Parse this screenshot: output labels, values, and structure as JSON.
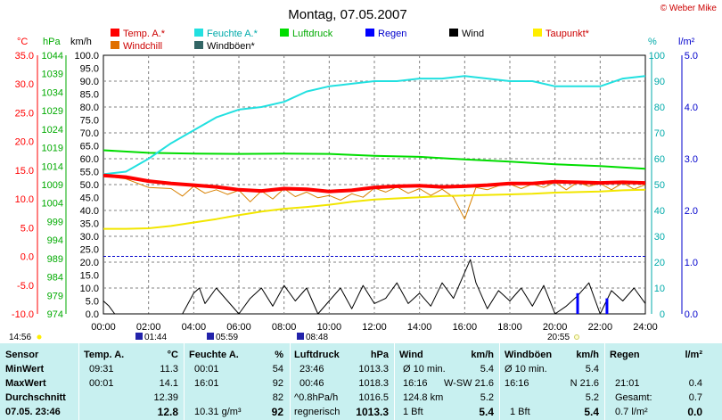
{
  "copyright": "© Weber Mike",
  "chart_data": {
    "type": "line",
    "title": "Montag, 07.05.2007",
    "x_ticks": [
      "00:00",
      "02:00",
      "04:00",
      "06:00",
      "08:00",
      "10:00",
      "12:00",
      "14:00",
      "16:00",
      "18:00",
      "20:00",
      "22:00",
      "24:00"
    ],
    "x_range_hours": [
      0,
      24
    ],
    "legend": [
      {
        "label": "Temp. A.*",
        "color": "#ff0000"
      },
      {
        "label": "Feuchte A.*",
        "color": "#22e0e0"
      },
      {
        "label": "Luftdruck",
        "color": "#00dd00"
      },
      {
        "label": "Regen",
        "color": "#0000ff"
      },
      {
        "label": "Wind",
        "color": "#000000"
      },
      {
        "label": "Taupunkt*",
        "color": "#ffee00"
      },
      {
        "label": "Windchill",
        "color": "#e07000"
      },
      {
        "label": "Windböen*",
        "color": "#336666"
      }
    ],
    "axes": {
      "temp": {
        "unit": "°C",
        "ticks": [
          "35.0",
          "30.0",
          "25.0",
          "20.0",
          "15.0",
          "10.0",
          "5.0",
          "0.0",
          "-5.0",
          "-10.0"
        ],
        "range": [
          -10,
          35
        ],
        "color": "#ff0000"
      },
      "pressure": {
        "unit": "hPa",
        "ticks": [
          "1044",
          "1039",
          "1034",
          "1029",
          "1024",
          "1019",
          "1014",
          "1009",
          "1004",
          "999",
          "994",
          "989",
          "984",
          "979",
          "974"
        ],
        "range": [
          974,
          1044
        ],
        "color": "#00aa00"
      },
      "wind": {
        "unit": "km/h",
        "ticks": [
          "100.0",
          "95.0",
          "90.0",
          "85.0",
          "80.0",
          "75.0",
          "70.0",
          "65.0",
          "60.0",
          "55.0",
          "50.0",
          "45.0",
          "40.0",
          "35.0",
          "30.0",
          "25.0",
          "20.0",
          "15.0",
          "10.0",
          "5.0",
          "0.0"
        ],
        "range": [
          0,
          100
        ]
      },
      "humidity": {
        "unit": "%",
        "ticks": [
          "100",
          "90",
          "80",
          "70",
          "60",
          "50",
          "40",
          "30",
          "20",
          "10",
          "0"
        ],
        "range": [
          0,
          100
        ],
        "color": "#00aaaa"
      },
      "rain": {
        "unit": "l/m²",
        "ticks": [
          "5.0",
          "4.0",
          "3.0",
          "2.0",
          "1.0",
          "0.0"
        ],
        "range": [
          0,
          5
        ],
        "color": "#0000cc"
      }
    },
    "series": [
      {
        "name": "Temp. A.*",
        "axis": "temp",
        "x": [
          0,
          1,
          2,
          3,
          4,
          5,
          6,
          7,
          8,
          9,
          10,
          11,
          12,
          13,
          14,
          15,
          16,
          17,
          18,
          19,
          20,
          21,
          22,
          23,
          24
        ],
        "values": [
          14.1,
          13.8,
          13.1,
          12.7,
          12.4,
          12.1,
          11.6,
          11.4,
          11.8,
          11.7,
          11.3,
          11.5,
          12.0,
          12.2,
          12.3,
          12.1,
          12.2,
          12.4,
          12.7,
          12.7,
          13.0,
          12.9,
          12.8,
          12.9,
          12.8
        ]
      },
      {
        "name": "Feuchte A.*",
        "axis": "humidity",
        "x": [
          0,
          1,
          2,
          3,
          4,
          5,
          6,
          7,
          8,
          9,
          10,
          11,
          12,
          13,
          14,
          15,
          16,
          17,
          18,
          19,
          20,
          21,
          22,
          23,
          24
        ],
        "values": [
          54,
          55,
          60,
          66,
          71,
          76,
          79,
          80,
          82,
          86,
          88,
          89,
          90,
          90,
          91,
          91,
          92,
          91,
          90,
          90,
          88,
          88,
          88,
          91,
          92
        ]
      },
      {
        "name": "Luftdruck",
        "axis": "pressure",
        "x": [
          0,
          2,
          4,
          6,
          8,
          10,
          12,
          14,
          16,
          18,
          20,
          22,
          24
        ],
        "values": [
          1018.3,
          1017.6,
          1017.4,
          1017.3,
          1017.4,
          1017.3,
          1016.8,
          1016.5,
          1015.8,
          1015.2,
          1014.5,
          1014.0,
          1013.3
        ]
      },
      {
        "name": "Taupunkt*",
        "axis": "temp",
        "x": [
          0,
          1,
          2,
          3,
          4,
          5,
          6,
          7,
          8,
          9,
          10,
          11,
          12,
          13,
          14,
          15,
          16,
          17,
          18,
          19,
          20,
          21,
          22,
          23,
          24
        ],
        "values": [
          4.8,
          4.8,
          4.9,
          5.3,
          5.9,
          6.5,
          7.2,
          7.8,
          8.3,
          8.6,
          9.0,
          9.5,
          9.9,
          10.1,
          10.3,
          10.5,
          10.6,
          10.7,
          10.8,
          10.9,
          11.1,
          11.2,
          11.3,
          11.5,
          11.6
        ]
      },
      {
        "name": "Windchill",
        "axis": "temp",
        "x": [
          0,
          1,
          2,
          3,
          3.5,
          4,
          4.5,
          5,
          5.5,
          6,
          6.5,
          7,
          7.5,
          8,
          8.5,
          9,
          9.5,
          10,
          10.5,
          11,
          11.5,
          12,
          12.5,
          13,
          13.5,
          14,
          14.5,
          15,
          15.5,
          16,
          16.5,
          17,
          17.5,
          18,
          18.5,
          19,
          19.5,
          20,
          20.5,
          21,
          21.5,
          22,
          22.5,
          23,
          23.5,
          24
        ],
        "values": [
          14.0,
          13.5,
          12.0,
          11.8,
          10.5,
          12.2,
          11.0,
          11.6,
          10.8,
          11.5,
          9.5,
          11.4,
          10.0,
          11.8,
          10.4,
          11.2,
          10.2,
          10.6,
          9.8,
          10.9,
          10.3,
          11.9,
          11.2,
          12.1,
          11.0,
          11.8,
          10.6,
          11.7,
          10.3,
          6.5,
          12.0,
          11.6,
          12.3,
          12.6,
          11.8,
          12.6,
          12.0,
          12.9,
          11.6,
          12.9,
          12.2,
          12.7,
          11.6,
          12.8,
          11.7,
          12.5
        ]
      },
      {
        "name": "Wind",
        "axis": "wind",
        "x": [
          0,
          0.25,
          0.5,
          1,
          1.5,
          2,
          2.5,
          3,
          3.5,
          4,
          4.25,
          4.5,
          5,
          5.5,
          6,
          6.5,
          7,
          7.5,
          8,
          8.5,
          9,
          9.5,
          10,
          10.5,
          11,
          11.5,
          12,
          12.5,
          13,
          13.5,
          14,
          14.5,
          15,
          15.5,
          16,
          16.25,
          16.5,
          17,
          17.5,
          18,
          18.5,
          19,
          19.5,
          20,
          20.5,
          21,
          21.5,
          22,
          22.5,
          23,
          23.5,
          24
        ],
        "values": [
          5,
          3,
          0,
          0,
          0,
          0,
          0,
          0,
          0,
          8,
          10,
          4,
          10,
          5,
          0,
          6,
          10,
          3,
          11,
          5,
          10,
          0,
          5,
          10,
          2,
          11,
          4,
          6,
          12,
          4,
          8,
          3,
          12,
          6,
          16,
          21,
          12,
          2,
          9,
          5,
          10,
          3,
          11,
          0,
          3,
          7,
          12,
          0,
          9,
          5,
          10,
          4
        ]
      }
    ],
    "rain_bars": {
      "name": "Regen",
      "axis": "rain",
      "x": [
        21.0,
        22.3
      ],
      "values": [
        0.4,
        0.3
      ]
    },
    "markers": [
      {
        "label": "14:56",
        "pos": "left"
      },
      {
        "label": "01:44"
      },
      {
        "label": "05:59"
      },
      {
        "label": "08:48"
      },
      {
        "label": "20:55"
      }
    ]
  },
  "table": {
    "headers": [
      "Sensor",
      "Temp. A.",
      "°C",
      "Feuchte A.",
      "%",
      "Luftdruck",
      "hPa",
      "Wind",
      "km/h",
      "Windböen",
      "km/h",
      "Regen",
      "l/m²"
    ],
    "rows": [
      {
        "label": "MinWert",
        "temp_time": "09:31",
        "temp_val": "11.3",
        "hum_time": "00:01",
        "hum_val": "54",
        "press_time": "23:46",
        "press_val": "1013.3",
        "wind_a": "Ø 10 min.",
        "wind_b": "",
        "wind_val": "5.4",
        "gust_a": "Ø 10 min.",
        "gust_b": "",
        "gust_val": "5.4",
        "rain_a": "",
        "rain_val": ""
      },
      {
        "label": "MaxWert",
        "temp_time": "00:01",
        "temp_val": "14.1",
        "hum_time": "16:01",
        "hum_val": "92",
        "press_time": "00:46",
        "press_val": "1018.3",
        "wind_a": "16:16",
        "wind_b": "W-SW 21.6",
        "wind_val": "",
        "gust_a": "16:16",
        "gust_b": "N 21.6",
        "gust_val": "",
        "rain_a": "21:01",
        "rain_val": "0.4"
      },
      {
        "label": "Durchschnitt",
        "temp_time": "",
        "temp_val": "12.39",
        "hum_time": "",
        "hum_val": "82",
        "press_time": "^0.8hPa/h",
        "press_val": "1016.5",
        "wind_a": "124.8 km",
        "wind_b": "",
        "wind_val": "5.2",
        "gust_a": "",
        "gust_b": "",
        "gust_val": "5.2",
        "rain_a": "Gesamt:",
        "rain_val": "0.7"
      },
      {
        "label": "07.05. 23:46",
        "temp_time": "",
        "temp_val": "12.8",
        "hum_time": "10.31 g/m³",
        "hum_val": "92",
        "press_time": "regnerisch",
        "press_val": "1013.3",
        "wind_a": "1 Bft",
        "wind_b": "",
        "wind_val": "5.4",
        "gust_a": "1 Bft",
        "gust_b": "",
        "gust_val": "5.4",
        "rain_a": "0.7 l/m²",
        "rain_val": "0.0"
      }
    ]
  }
}
